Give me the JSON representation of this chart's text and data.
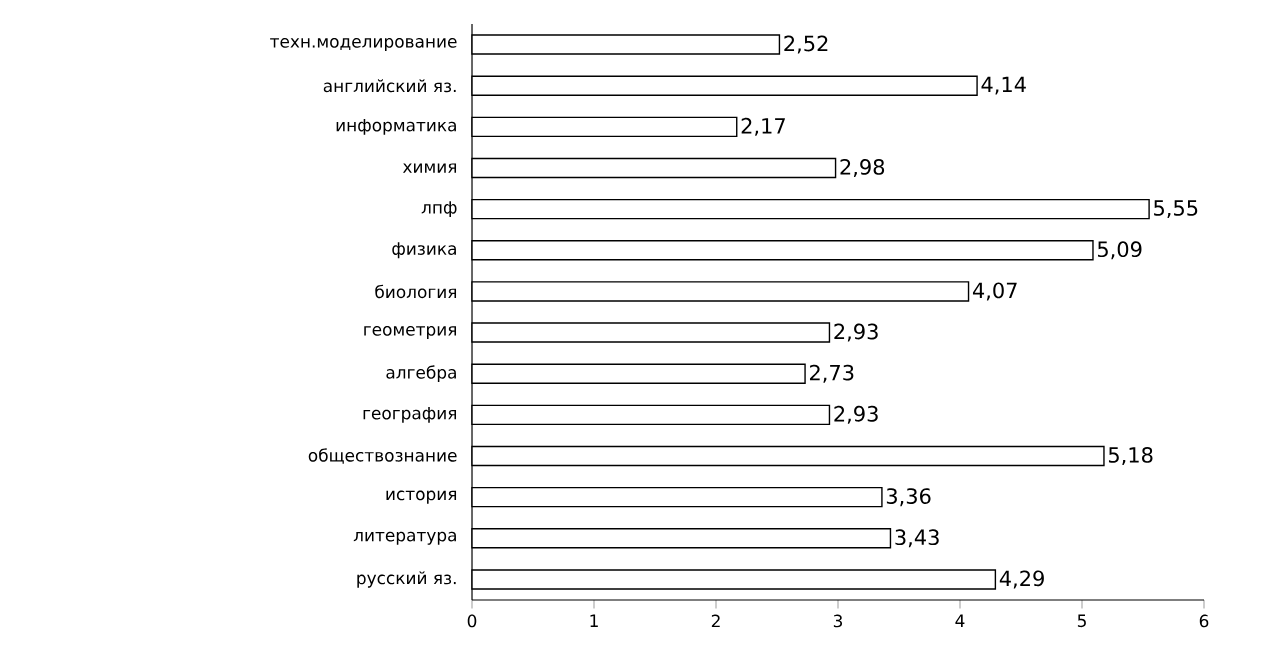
{
  "chart_data": {
    "type": "bar",
    "orientation": "horizontal",
    "categories": [
      "техн.моделирование",
      "английский яз.",
      "информатика",
      "химия",
      "лпф",
      "физика",
      "биология",
      "геометрия",
      "алгебра",
      "география",
      "обществознание",
      "история",
      "литература",
      "русский яз."
    ],
    "values": [
      2.52,
      4.14,
      2.17,
      2.98,
      5.55,
      5.09,
      4.07,
      2.93,
      2.73,
      2.93,
      5.18,
      3.36,
      3.43,
      4.29
    ],
    "value_labels": [
      "2,52",
      "4,14",
      "2,17",
      "2,98",
      "5,55",
      "5,09",
      "4,07",
      "2,93",
      "2,73",
      "2,93",
      "5,18",
      "3,36",
      "3,43",
      "4,29"
    ],
    "color": "#ffffff",
    "xlim": [
      0,
      6
    ],
    "xticks": [
      0,
      1,
      2,
      3,
      4,
      5,
      6
    ],
    "grid": false
  }
}
